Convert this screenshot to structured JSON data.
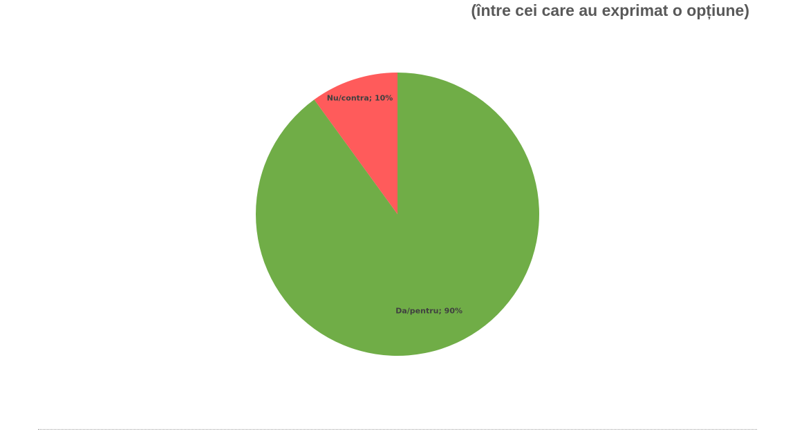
{
  "chart_data": {
    "type": "pie",
    "subtitle": "(între cei care au exprimat o opțiune)",
    "slices": [
      {
        "label": "Da/pentru",
        "value": 90,
        "color": "#70AD47",
        "data_label": "Da/pentru; 90%"
      },
      {
        "label": "Nu/contra",
        "value": 10,
        "color": "#FF5B5B",
        "data_label": "Nu/contra; 10%"
      }
    ],
    "legend": "none"
  }
}
